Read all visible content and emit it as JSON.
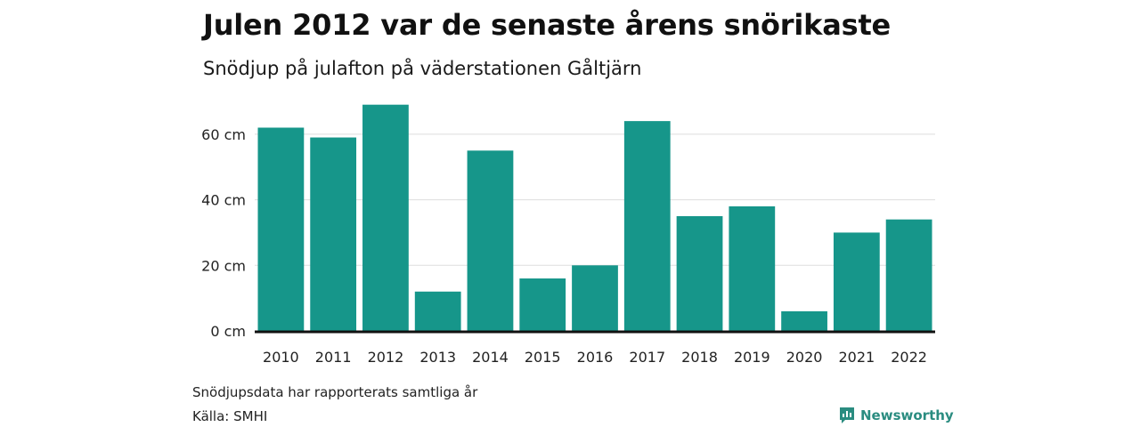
{
  "header": {
    "title": "Julen 2012 var de senaste årens snörikaste",
    "subtitle": "Snödjup på julafton på väderstationen Gåltjärn"
  },
  "footer": {
    "note": "Snödjupsdata har rapporterats samtliga år",
    "source": "Källa: SMHI",
    "brand": "Newsworthy",
    "brand_icon": "newsworthy-logo-icon"
  },
  "colors": {
    "bar": "#16968a",
    "grid": "#dddddd",
    "baseline": "#111111",
    "brand": "#2a8c80"
  },
  "chart_data": {
    "type": "bar",
    "categories": [
      "2010",
      "2011",
      "2012",
      "2013",
      "2014",
      "2015",
      "2016",
      "2017",
      "2018",
      "2019",
      "2020",
      "2021",
      "2022"
    ],
    "values": [
      62,
      59,
      69,
      12,
      55,
      16,
      20,
      64,
      35,
      38,
      6,
      30,
      34
    ],
    "unit": "cm",
    "yticks": [
      0,
      20,
      40,
      60
    ],
    "ytick_labels": [
      "0 cm",
      "20 cm",
      "40 cm",
      "60 cm"
    ],
    "ylim": [
      0,
      70
    ],
    "grid": true,
    "xlabel": "",
    "ylabel": ""
  }
}
